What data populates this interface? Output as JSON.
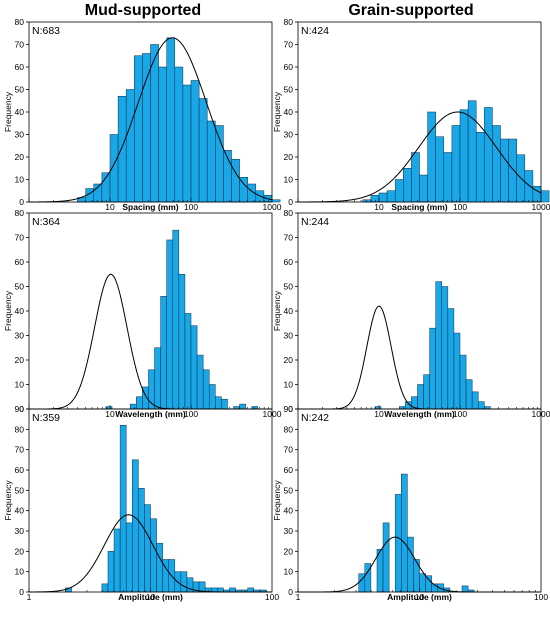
{
  "column_titles": [
    "Mud-supported",
    "Grain-supported"
  ],
  "style": {
    "bar_fill": "#1AA7E8",
    "bar_stroke": "#0b2e42",
    "curve": "#000000",
    "axis": "#000000"
  },
  "chart_data": [
    {
      "type": "bar",
      "panel": "mud-spacing",
      "n_label": "N:683",
      "xlabel": "Spacing (mm)",
      "ylabel": "Frequency",
      "x_scale": "log",
      "xlim": [
        1,
        1000
      ],
      "ylim": [
        0,
        80
      ],
      "yticks": [
        0,
        10,
        20,
        30,
        40,
        50,
        60,
        70,
        80
      ],
      "xticks": [
        10,
        100,
        1000
      ],
      "bins": {
        "log_start": 0.6,
        "log_width": 0.1,
        "values": [
          2,
          6,
          8,
          13,
          30,
          47,
          50,
          65,
          66,
          70,
          60,
          73,
          60,
          52,
          54,
          46,
          36,
          34,
          23,
          19,
          11,
          8,
          5,
          3,
          1
        ]
      },
      "fit": {
        "mean_log": 1.77,
        "sd_log": 0.42,
        "peak": 73
      }
    },
    {
      "type": "bar",
      "panel": "grain-spacing",
      "n_label": "N:424",
      "xlabel": "Spacing (mm)",
      "ylabel": "Frequency",
      "x_scale": "log",
      "xlim": [
        1,
        1000
      ],
      "ylim": [
        0,
        80
      ],
      "yticks": [
        0,
        10,
        20,
        30,
        40,
        50,
        60,
        70,
        80
      ],
      "xticks": [
        10,
        100,
        1000
      ],
      "bins": {
        "log_start": 0.8,
        "log_width": 0.1,
        "values": [
          1,
          3,
          4,
          5,
          10,
          15,
          22,
          12,
          40,
          29,
          22,
          34,
          41,
          45,
          31,
          42,
          34,
          28,
          28,
          21,
          14,
          7,
          5
        ]
      },
      "fit": {
        "mean_log": 1.97,
        "sd_log": 0.48,
        "peak": 40
      }
    },
    {
      "type": "bar",
      "panel": "mud-wavelength",
      "n_label": "N:364",
      "xlabel": "Wavelength (mm)",
      "ylabel": "Frequency",
      "x_scale": "log",
      "xlim": [
        1,
        1000
      ],
      "ylim": [
        0,
        80
      ],
      "yticks": [
        0,
        10,
        20,
        30,
        40,
        50,
        60,
        70,
        80
      ],
      "xticks": [
        10,
        100,
        1000
      ],
      "bins": {
        "log_start": 0.5,
        "log_width": 0.075,
        "values": [
          0,
          0,
          0,
          0,
          0,
          0,
          1,
          0,
          0,
          0,
          2,
          5,
          9,
          16,
          25,
          46,
          69,
          73,
          55,
          39,
          34,
          22,
          16,
          10,
          5,
          4,
          0,
          1,
          2,
          0,
          1
        ]
      },
      "fit": {
        "mean_log": 1.01,
        "sd_log": 0.2,
        "peak": 55
      }
    },
    {
      "type": "bar",
      "panel": "grain-wavelength",
      "n_label": "N:244",
      "xlabel": "Wavelength (mm)",
      "ylabel": "Frequency",
      "x_scale": "log",
      "xlim": [
        1,
        1000
      ],
      "ylim": [
        0,
        80
      ],
      "yticks": [
        0,
        10,
        20,
        30,
        40,
        50,
        60,
        70,
        80
      ],
      "xticks": [
        10,
        100,
        1000
      ],
      "bins": {
        "log_start": 0.5,
        "log_width": 0.075,
        "values": [
          0,
          0,
          0,
          0,
          0,
          0,
          1,
          0,
          0,
          0,
          1,
          3,
          5,
          10,
          14,
          33,
          52,
          50,
          41,
          31,
          22,
          12,
          7,
          3,
          1
        ]
      },
      "fit": {
        "mean_log": 1.0,
        "sd_log": 0.15,
        "peak": 42
      }
    },
    {
      "type": "bar",
      "panel": "mud-amplitude",
      "n_label": "N:359",
      "xlabel": "Amplitude (mm)",
      "ylabel": "Frequency",
      "x_scale": "log",
      "xlim": [
        1,
        100
      ],
      "ylim": [
        0,
        90
      ],
      "yticks": [
        0,
        10,
        20,
        30,
        40,
        50,
        60,
        70,
        80,
        90
      ],
      "xticks": [
        1,
        10,
        100
      ],
      "bins": {
        "log_start": 0.3,
        "log_width": 0.05,
        "values": [
          2,
          0,
          0,
          0,
          0,
          0,
          4,
          20,
          31,
          82,
          34,
          65,
          51,
          43,
          36,
          24,
          16,
          16,
          10,
          10,
          7,
          5,
          5,
          2,
          2,
          2,
          1,
          2,
          1,
          1,
          2,
          1,
          1
        ]
      },
      "fit": {
        "mean_log": 0.82,
        "sd_log": 0.2,
        "peak": 38
      }
    },
    {
      "type": "bar",
      "panel": "grain-amplitude",
      "n_label": "N:242",
      "xlabel": "Amplitude (mm)",
      "ylabel": "Frequency",
      "x_scale": "log",
      "xlim": [
        1,
        100
      ],
      "ylim": [
        0,
        90
      ],
      "yticks": [
        0,
        10,
        20,
        30,
        40,
        50,
        60,
        70,
        80,
        90
      ],
      "xticks": [
        1,
        10,
        100
      ],
      "bins": {
        "log_start": 0.5,
        "log_width": 0.05,
        "values": [
          9,
          14,
          0,
          21,
          34,
          0,
          48,
          58,
          27,
          16,
          9,
          8,
          4,
          4,
          2,
          0,
          0,
          3,
          1
        ]
      },
      "fit": {
        "mean_log": 0.8,
        "sd_log": 0.16,
        "peak": 27
      }
    }
  ]
}
